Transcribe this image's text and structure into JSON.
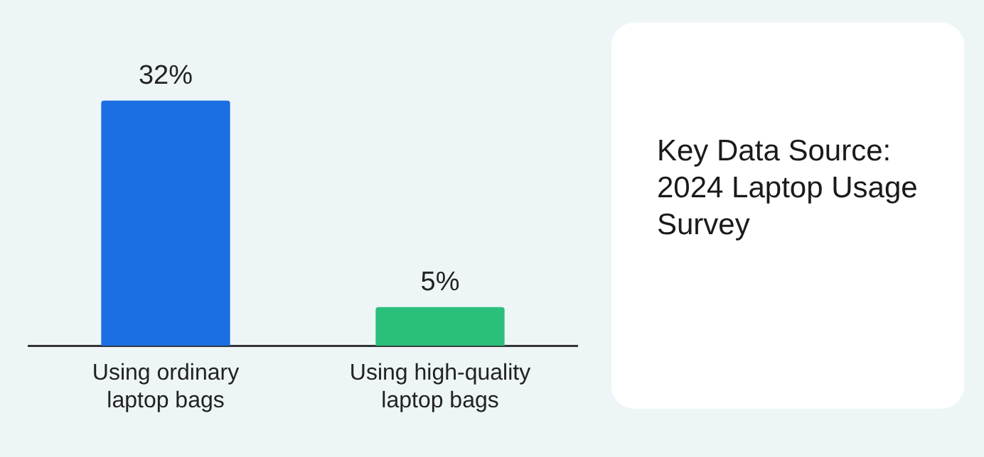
{
  "chart_data": {
    "type": "bar",
    "categories": [
      "Using ordinary laptop bags",
      "Using high-quality laptop bags"
    ],
    "values": [
      32,
      5
    ],
    "colors": [
      "#1b6fe3",
      "#2bbf7c"
    ],
    "value_labels": [
      "32%",
      "5%"
    ],
    "grid": false,
    "legend": false,
    "tick_labels": "x",
    "annotations": [
      "Key Data Source: 2024 Laptop Usage Survey"
    ]
  }
}
